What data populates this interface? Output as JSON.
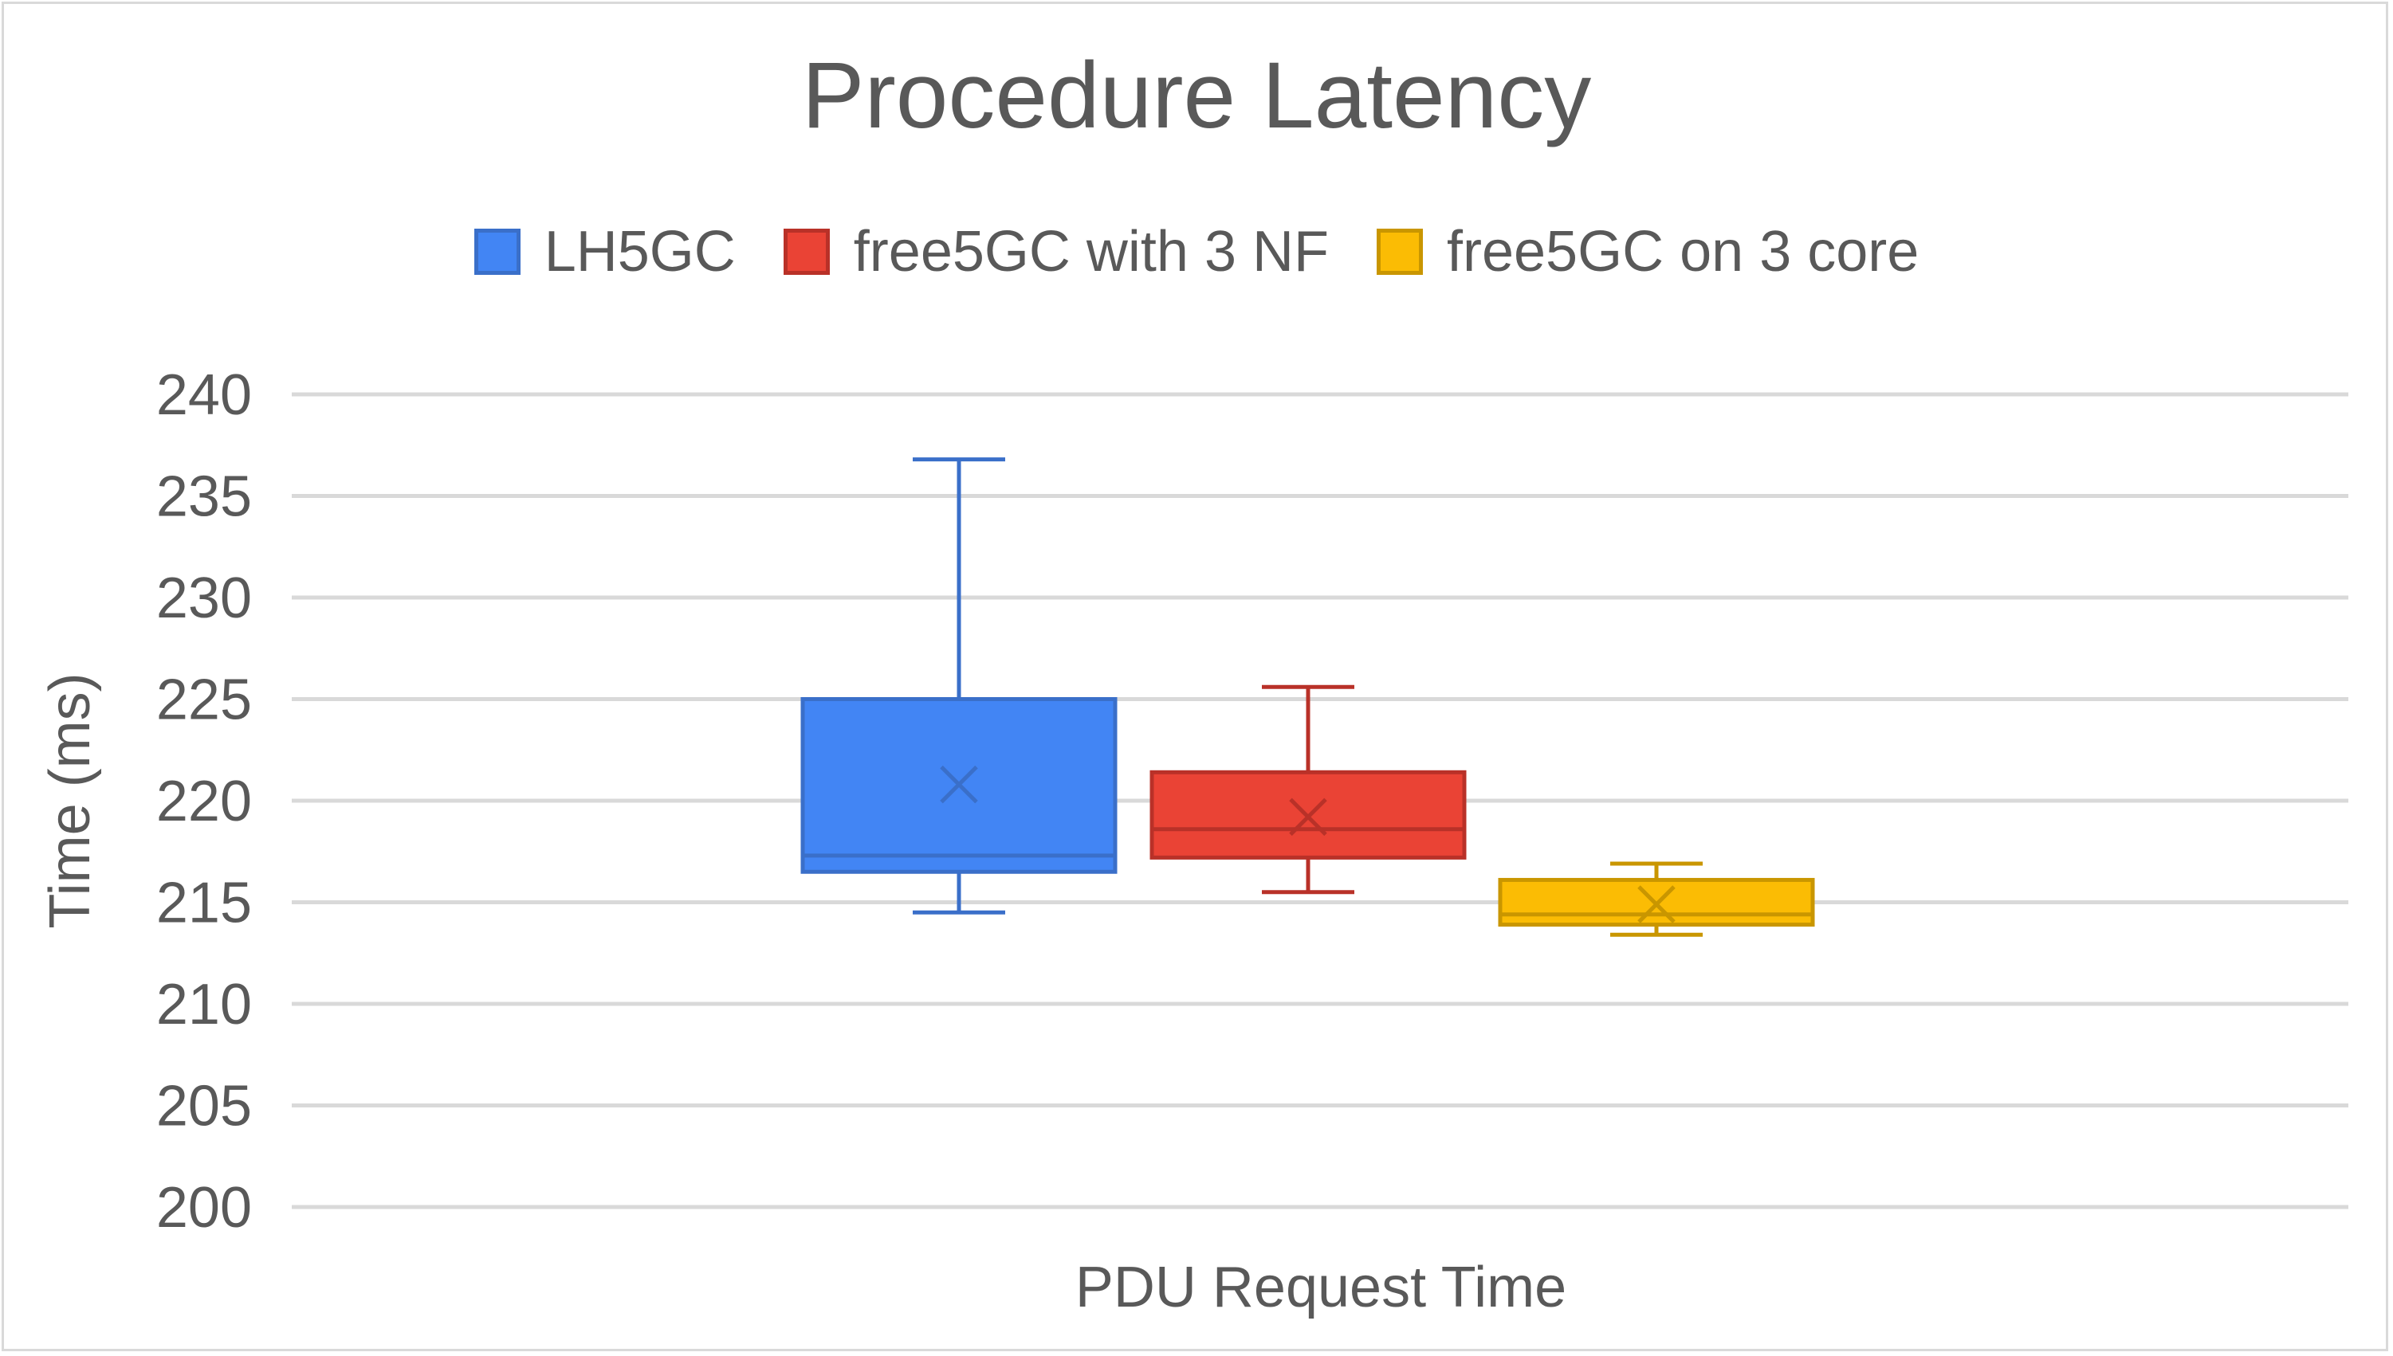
{
  "chart_data": {
    "type": "box",
    "title": "Procedure Latency",
    "xlabel": "PDU Request Time",
    "ylabel": "Time (ms)",
    "categories": [
      "PDU Request Time"
    ],
    "ylim": [
      200,
      240
    ],
    "yticks": [
      200,
      205,
      210,
      215,
      220,
      225,
      230,
      235,
      240
    ],
    "grid": true,
    "legend_position": "top",
    "series": [
      {
        "name": "LH5GC",
        "color": "#4285f4",
        "stroke": "#3a6fc9",
        "min": 214.5,
        "q1": 216.5,
        "median": 217.3,
        "q3": 225.0,
        "max": 236.8,
        "mean": 220.8
      },
      {
        "name": "free5GC with 3 NF",
        "color": "#ea4335",
        "stroke": "#b93128",
        "min": 215.5,
        "q1": 217.2,
        "median": 218.6,
        "q3": 221.4,
        "max": 225.6,
        "mean": 219.2
      },
      {
        "name": "free5GC on 3 core",
        "color": "#fbbc04",
        "stroke": "#c99600",
        "min": 213.4,
        "q1": 213.9,
        "median": 214.4,
        "q3": 216.1,
        "max": 216.9,
        "mean": 214.9
      }
    ]
  }
}
